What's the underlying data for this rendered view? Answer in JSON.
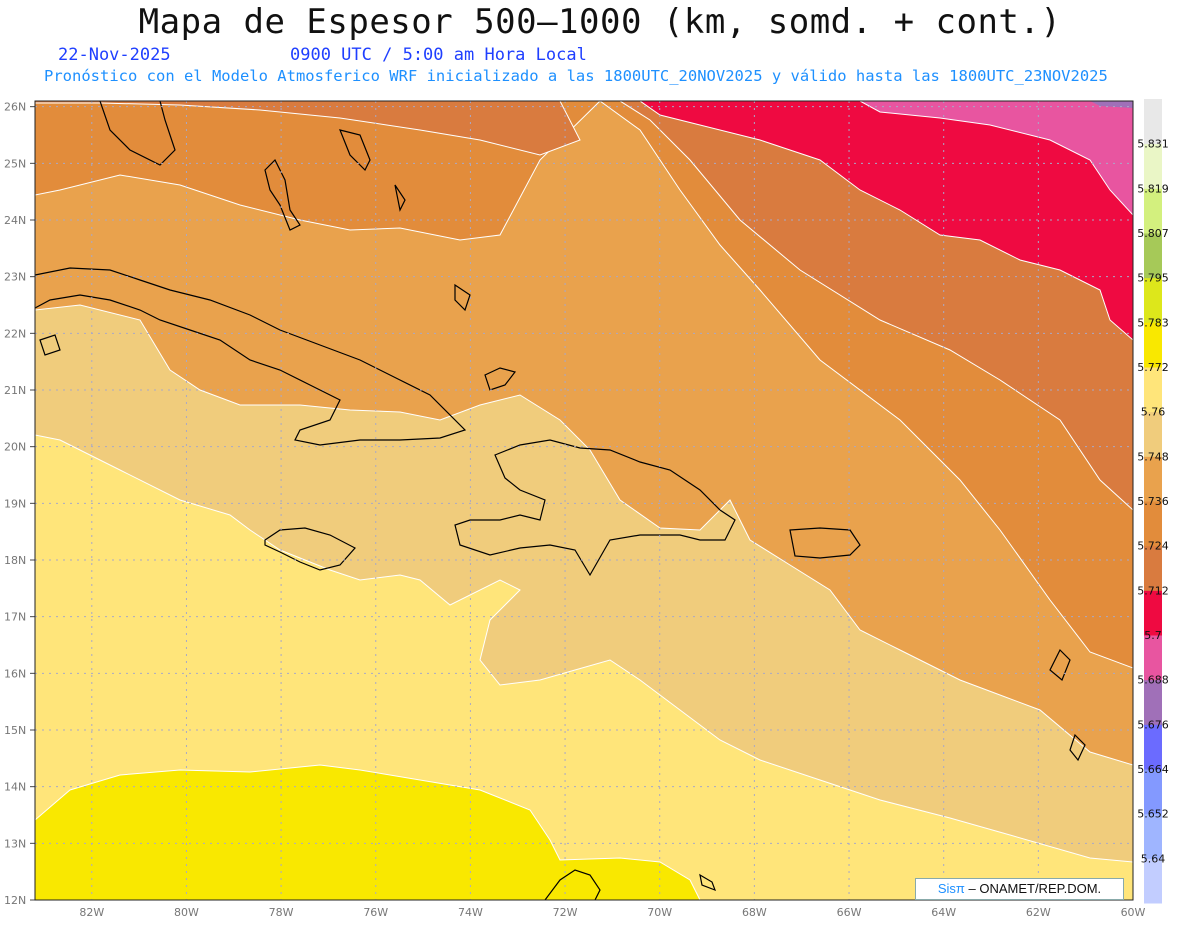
{
  "header": {
    "title": "Mapa de Espesor 500—1000 (km, somd. + cont.)",
    "date": "22-Nov-2025",
    "time": "0900 UTC / 5:00 am Hora Local",
    "subtitle": "Pronóstico con el Modelo Atmosferico WRF inicializado a las 1800UTC_20NOV2025 y válido hasta las  1800UTC_23NOV2025"
  },
  "map": {
    "lon_range": [
      -83.2,
      -60
    ],
    "lat_range": [
      12,
      26.1
    ],
    "lon_ticks": [
      "82W",
      "80W",
      "78W",
      "76W",
      "74W",
      "72W",
      "70W",
      "68W",
      "66W",
      "64W",
      "62W",
      "60W"
    ],
    "lat_ticks": [
      "12N",
      "13N",
      "14N",
      "15N",
      "16N",
      "17N",
      "18N",
      "19N",
      "20N",
      "21N",
      "22N",
      "23N",
      "24N",
      "25N",
      "26N"
    ],
    "gridlines": true
  },
  "legend": {
    "levels": [
      "5.64",
      "5.652",
      "5.664",
      "5.676",
      "5.688",
      "5.7",
      "5.712",
      "5.724",
      "5.736",
      "5.748",
      "5.76",
      "5.772",
      "5.783",
      "5.795",
      "5.807",
      "5.819",
      "5.831"
    ],
    "colors": [
      "#c2cdff",
      "#9fb5ff",
      "#8399ff",
      "#6b6bff",
      "#a070b8",
      "#e855a0",
      "#ef0a41",
      "#d97b3f",
      "#e28c3b",
      "#e9a24d",
      "#f0cc7c",
      "#ffe57a",
      "#f9e800",
      "#dde71b",
      "#a6c958",
      "#d3f07e",
      "#eaf6c6",
      "#e8e8e8"
    ]
  },
  "credit": {
    "brand": "Sisπ",
    "text": "– ONAMET/REP.DOM."
  }
}
